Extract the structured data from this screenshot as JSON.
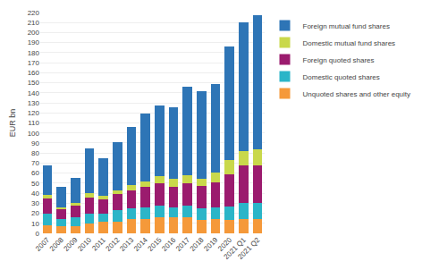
{
  "chart_data": {
    "type": "bar",
    "stacked": true,
    "categories": [
      "2007",
      "2008",
      "2009",
      "2010",
      "2011",
      "2012",
      "2013",
      "2014",
      "2015",
      "2016",
      "2017",
      "2018",
      "2019",
      "2020",
      "2021 Q1",
      "2021 Q2"
    ],
    "series": [
      {
        "name": "Unquoted shares and other equity",
        "color": "#F5993A",
        "values": [
          8,
          7,
          7,
          10,
          12,
          12,
          14,
          14,
          16,
          16,
          16,
          13,
          14,
          13,
          14,
          14
        ]
      },
      {
        "name": "Domestic quoted shares",
        "color": "#2BB5C8",
        "values": [
          12,
          7,
          9,
          10,
          8,
          11,
          11,
          12,
          12,
          10,
          12,
          12,
          12,
          14,
          16,
          16
        ]
      },
      {
        "name": "Foreign quoted shares",
        "color": "#9B1B6E",
        "values": [
          15,
          10,
          12,
          16,
          14,
          16,
          18,
          20,
          22,
          20,
          22,
          22,
          25,
          32,
          38,
          38
        ]
      },
      {
        "name": "Domestic mutual fund shares",
        "color": "#C9D84B",
        "values": [
          3,
          2,
          2,
          4,
          3,
          4,
          5,
          6,
          7,
          8,
          8,
          7,
          10,
          14,
          14,
          16
        ]
      },
      {
        "name": "Foreign mutual fund shares",
        "color": "#2E75B6",
        "values": [
          30,
          20,
          25,
          45,
          38,
          48,
          58,
          67,
          70,
          72,
          88,
          88,
          88,
          113,
          128,
          133
        ]
      }
    ],
    "ylabel": "EUR bn",
    "ylim": [
      0,
      220
    ],
    "yticks": [
      0,
      10,
      20,
      30,
      40,
      50,
      60,
      70,
      80,
      90,
      100,
      110,
      120,
      130,
      140,
      150,
      160,
      170,
      180,
      190,
      200,
      210,
      220
    ],
    "grid": true,
    "legend": "right"
  }
}
